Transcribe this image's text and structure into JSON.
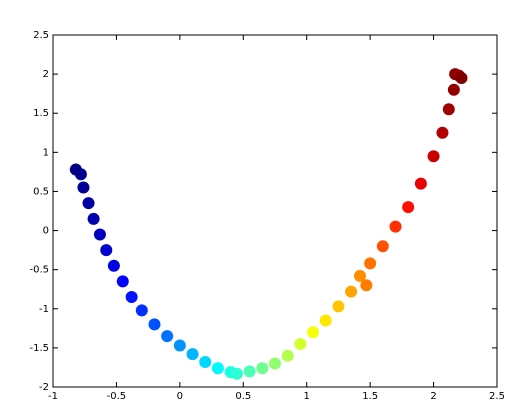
{
  "chart_data": {
    "type": "scatter",
    "colormap": "jet",
    "x": [
      -0.82,
      -0.78,
      -0.76,
      -0.72,
      -0.68,
      -0.63,
      -0.58,
      -0.52,
      -0.45,
      -0.38,
      -0.3,
      -0.2,
      -0.1,
      0.0,
      0.1,
      0.2,
      0.3,
      0.4,
      0.45,
      0.55,
      0.65,
      0.75,
      0.85,
      0.95,
      1.05,
      1.15,
      1.25,
      1.35,
      1.42,
      1.47,
      1.5,
      1.6,
      1.7,
      1.8,
      1.9,
      2.0,
      2.07,
      2.12,
      2.16,
      2.2,
      2.17,
      2.22
    ],
    "values": [
      0.78,
      0.72,
      0.55,
      0.35,
      0.15,
      -0.05,
      -0.25,
      -0.45,
      -0.65,
      -0.85,
      -1.02,
      -1.2,
      -1.35,
      -1.47,
      -1.58,
      -1.68,
      -1.76,
      -1.81,
      -1.83,
      -1.8,
      -1.76,
      -1.7,
      -1.6,
      -1.45,
      -1.3,
      -1.15,
      -0.97,
      -0.78,
      -0.58,
      -0.7,
      -0.42,
      -0.2,
      0.05,
      0.3,
      0.6,
      0.95,
      1.25,
      1.55,
      1.8,
      1.98,
      2.0,
      1.95
    ],
    "xlim": [
      -1,
      2.5
    ],
    "ylim": [
      -2,
      2.5
    ],
    "xticks": [
      -1,
      -0.5,
      0,
      0.5,
      1,
      1.5,
      2,
      2.5
    ],
    "yticks": [
      -2,
      -1.5,
      -1,
      -0.5,
      0,
      0.5,
      1,
      1.5,
      2,
      2.5
    ],
    "grid": false
  }
}
